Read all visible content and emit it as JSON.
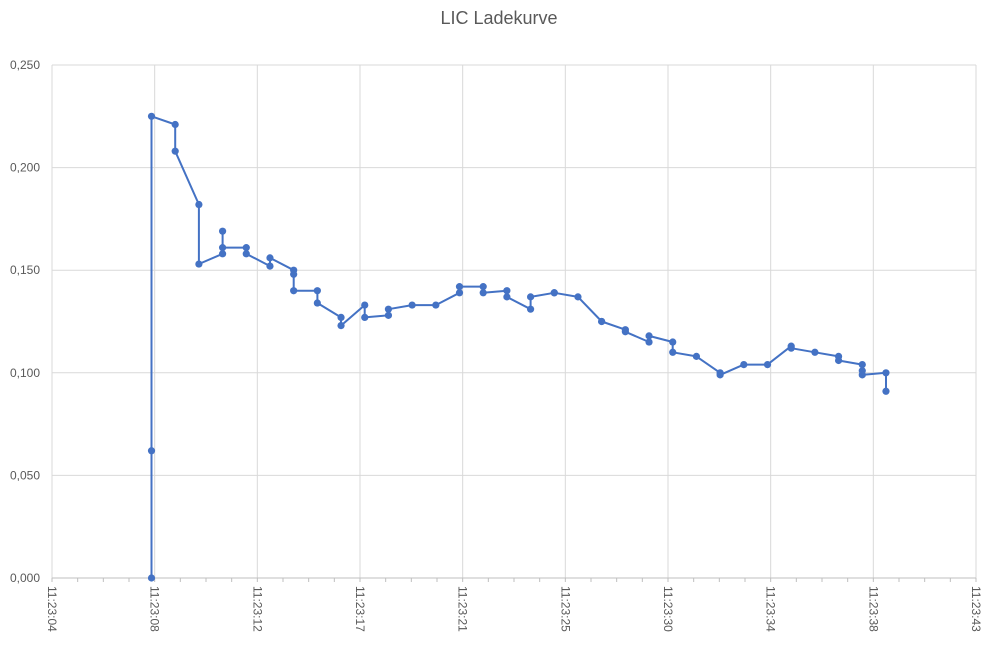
{
  "chart_data": {
    "type": "line",
    "title": "LIC Ladekurve",
    "xlabel": "",
    "ylabel": "",
    "ylim": [
      0,
      0.25
    ],
    "y_ticks": [
      "0,000",
      "0,050",
      "0,100",
      "0,150",
      "0,200",
      "0,250"
    ],
    "x_range_seconds": [
      0,
      39
    ],
    "x_ticks": [
      "11:23:04",
      "11:23:08",
      "11:23:12",
      "11:23:17",
      "11:23:21",
      "11:23:25",
      "11:23:30",
      "11:23:34",
      "11:23:38",
      "11:23:43"
    ],
    "grid": true,
    "legend": "none",
    "series": [
      {
        "color": "#4472c4",
        "x": [
          4.2,
          4.2,
          4.2,
          5.2,
          5.2,
          6.2,
          6.2,
          7.2,
          7.2,
          7.2,
          8.2,
          8.2,
          9.2,
          9.2,
          10.2,
          10.2,
          10.2,
          11.2,
          11.2,
          12.2,
          12.2,
          13.2,
          13.2,
          14.2,
          14.2,
          15.2,
          16.2,
          17.2,
          17.2,
          18.2,
          18.2,
          19.2,
          19.2,
          20.2,
          20.2,
          21.2,
          21.2,
          22.2,
          23.2,
          23.2,
          24.2,
          24.2,
          25.2,
          25.2,
          26.2,
          26.2,
          27.2,
          28.2,
          28.2,
          29.2,
          30.2,
          31.2,
          31.2,
          32.2,
          33.2,
          33.2,
          34.2,
          34.2,
          34.2,
          35.2,
          35.2
        ],
        "y": [
          0.0,
          0.062,
          0.225,
          0.221,
          0.208,
          0.182,
          0.153,
          0.158,
          0.169,
          0.161,
          0.161,
          0.158,
          0.152,
          0.156,
          0.15,
          0.148,
          0.14,
          0.14,
          0.134,
          0.127,
          0.123,
          0.133,
          0.127,
          0.128,
          0.131,
          0.133,
          0.133,
          0.139,
          0.142,
          0.142,
          0.139,
          0.14,
          0.137,
          0.131,
          0.137,
          0.139,
          0.139,
          0.137,
          0.125,
          0.125,
          0.121,
          0.12,
          0.115,
          0.118,
          0.115,
          0.11,
          0.108,
          0.1,
          0.099,
          0.104,
          0.104,
          0.113,
          0.112,
          0.11,
          0.108,
          0.106,
          0.104,
          0.101,
          0.099,
          0.1,
          0.091
        ]
      }
    ]
  }
}
